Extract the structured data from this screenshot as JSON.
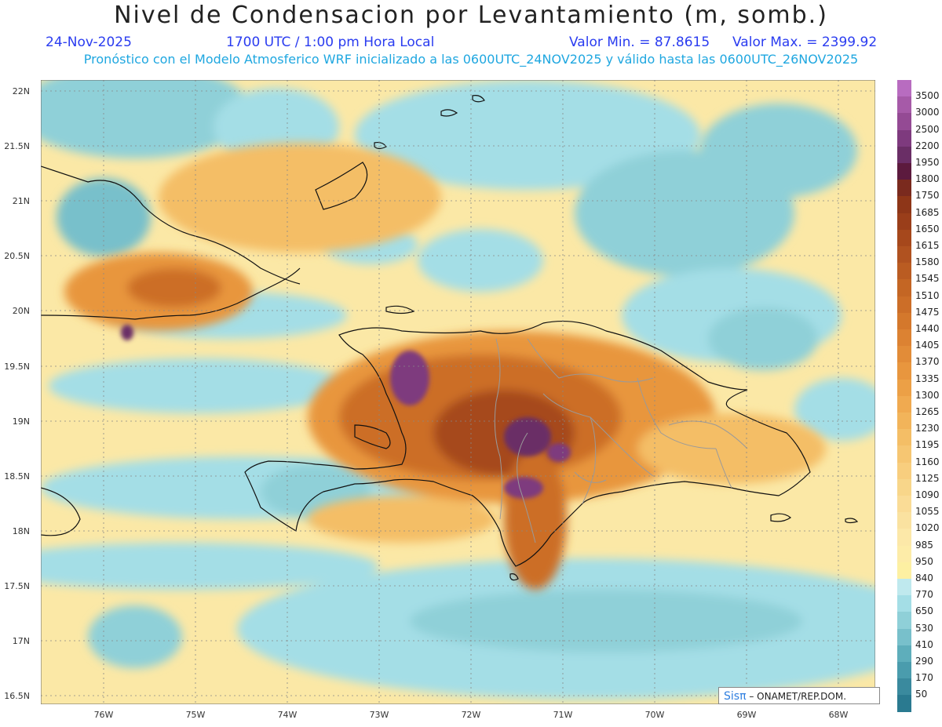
{
  "title": "Nivel de Condensacion por Levantamiento (m, somb.)",
  "date": "24-Nov-2025",
  "time": "1700 UTC / 1:00 pm Hora Local",
  "valmin": "Valor Min. = 87.8615",
  "valmax": "Valor Max. = 2399.92",
  "subtitle": "Pronóstico con el Modelo Atmosferico WRF inicializado a las 0600UTC_24NOV2025 y válido hasta las  0600UTC_26NOV2025",
  "credit_logo": "Sisπ",
  "credit_text": "– ONAMET/REP.DOM.",
  "lat_labels": [
    "22N",
    "21.5N",
    "21N",
    "20.5N",
    "20N",
    "19.5N",
    "19N",
    "18.5N",
    "18N",
    "17.5N",
    "17N",
    "16.5N"
  ],
  "lon_labels": [
    "76W",
    "75W",
    "74W",
    "73W",
    "72W",
    "71W",
    "70W",
    "69W",
    "68W"
  ],
  "legend": [
    {
      "label": "3500",
      "color": "#b86cc0"
    },
    {
      "label": "3000",
      "color": "#a65aa8"
    },
    {
      "label": "2500",
      "color": "#944a94"
    },
    {
      "label": "2200",
      "color": "#7e3a7e"
    },
    {
      "label": "1950",
      "color": "#6a2e66"
    },
    {
      "label": "1800",
      "color": "#5c1a3e"
    },
    {
      "label": "1750",
      "color": "#7a2a1e"
    },
    {
      "label": "1685",
      "color": "#8e3618"
    },
    {
      "label": "1650",
      "color": "#9a3e1a"
    },
    {
      "label": "1615",
      "color": "#a6481c"
    },
    {
      "label": "1580",
      "color": "#b05220"
    },
    {
      "label": "1545",
      "color": "#ba5c22"
    },
    {
      "label": "1510",
      "color": "#c46624"
    },
    {
      "label": "1475",
      "color": "#cc6e28"
    },
    {
      "label": "1440",
      "color": "#d4782c"
    },
    {
      "label": "1405",
      "color": "#dc8232"
    },
    {
      "label": "1370",
      "color": "#e28c38"
    },
    {
      "label": "1335",
      "color": "#e8963e"
    },
    {
      "label": "1300",
      "color": "#eca046"
    },
    {
      "label": "1265",
      "color": "#f0aa50"
    },
    {
      "label": "1230",
      "color": "#f2b45a"
    },
    {
      "label": "1195",
      "color": "#f4be66"
    },
    {
      "label": "1160",
      "color": "#f6c672"
    },
    {
      "label": "1125",
      "color": "#f8ce7e"
    },
    {
      "label": "1090",
      "color": "#f8d68a"
    },
    {
      "label": "1055",
      "color": "#fadc96"
    },
    {
      "label": "1020",
      "color": "#fae2a0"
    },
    {
      "label": "985",
      "color": "#fce8a8"
    },
    {
      "label": "950",
      "color": "#fdeca8"
    },
    {
      "label": "840",
      "color": "#fdf0a2"
    },
    {
      "label": "770",
      "color": "#bfe9ee"
    },
    {
      "label": "650",
      "color": "#a4dee6"
    },
    {
      "label": "530",
      "color": "#8fd0d8"
    },
    {
      "label": "410",
      "color": "#78c0cb"
    },
    {
      "label": "290",
      "color": "#5eaebb"
    },
    {
      "label": "170",
      "color": "#4a9cad"
    },
    {
      "label": "50",
      "color": "#3a8a9e"
    },
    {
      "label": "",
      "color": "#2a7a90"
    }
  ]
}
